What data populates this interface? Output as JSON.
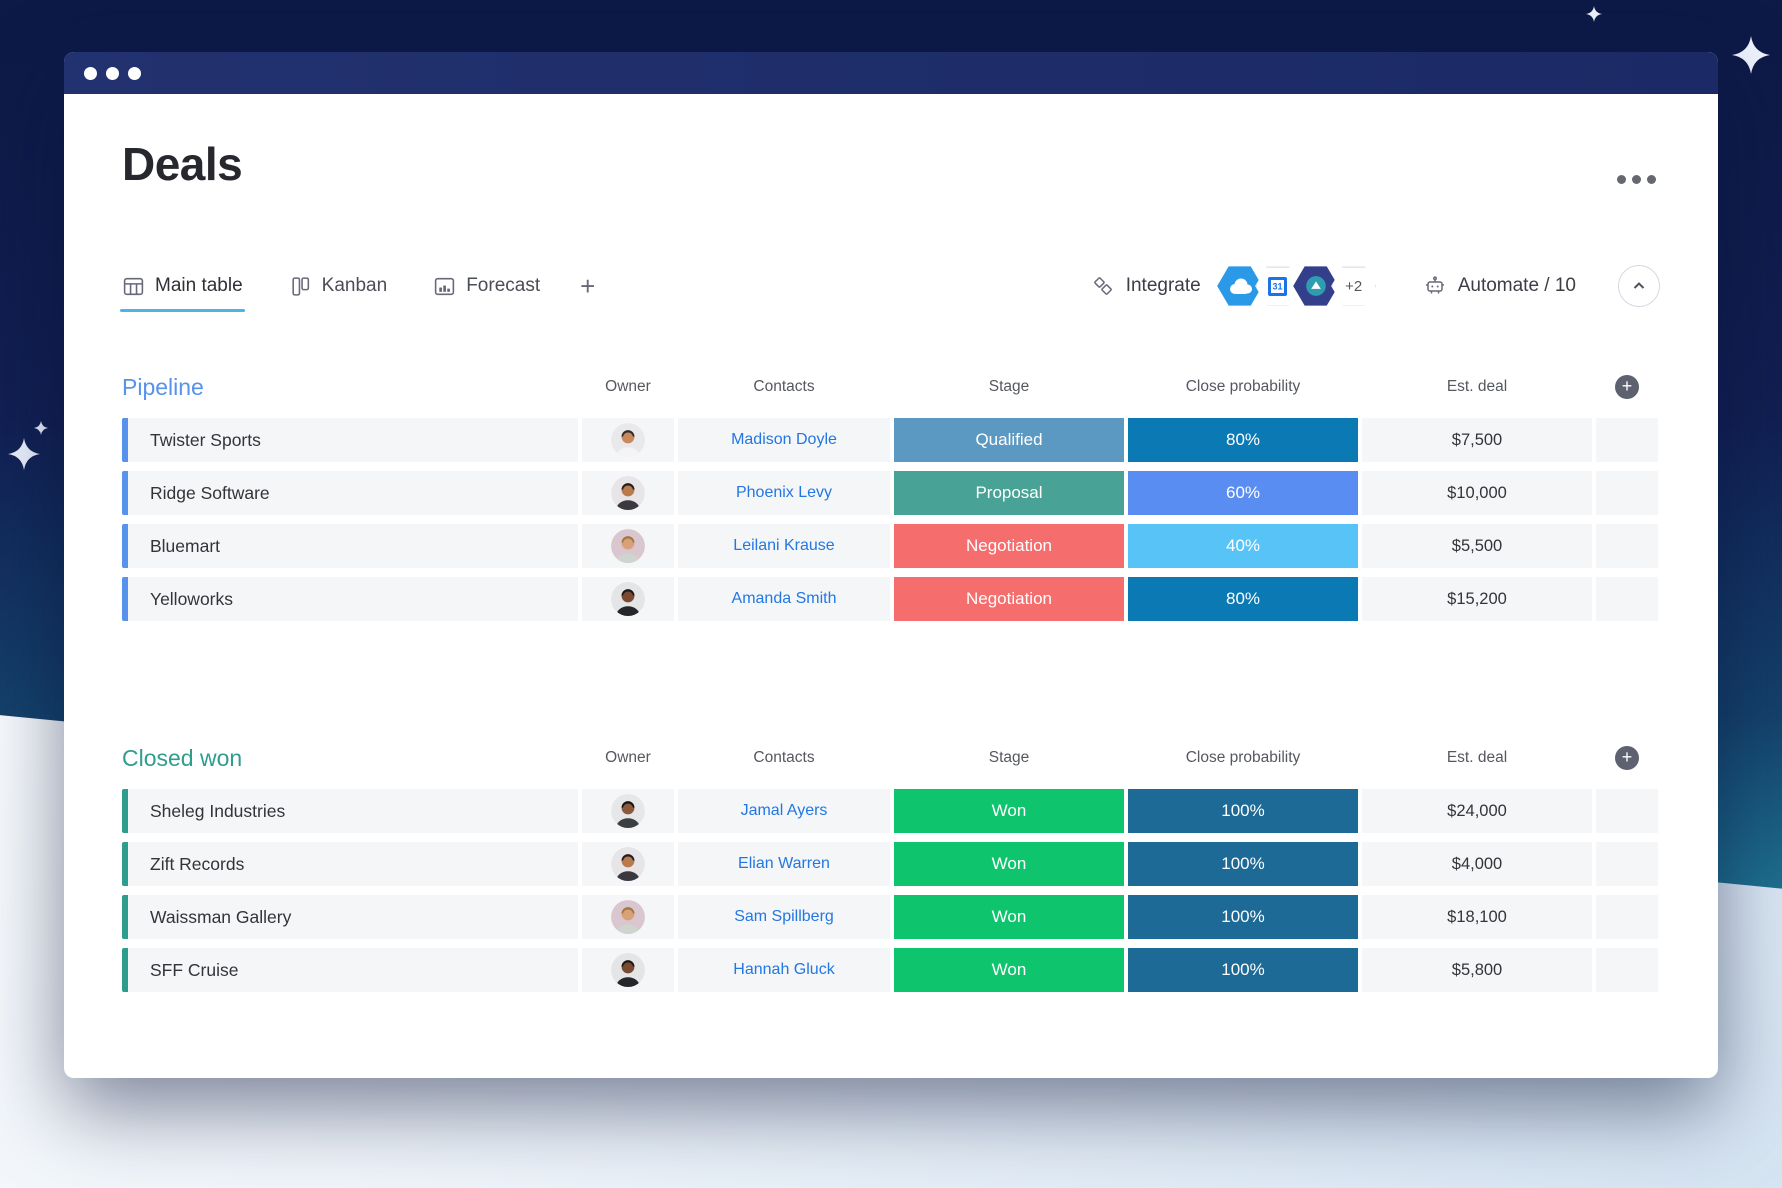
{
  "window": {
    "title": "Deals"
  },
  "tabs": [
    {
      "label": "Main table",
      "icon": "table-icon",
      "active": true
    },
    {
      "label": "Kanban",
      "icon": "kanban-icon",
      "active": false
    },
    {
      "label": "Forecast",
      "icon": "forecast-icon",
      "active": false
    }
  ],
  "toolbar": {
    "integrate_label": "Integrate",
    "automate_label": "Automate / 10",
    "badges": [
      {
        "name": "cloud-app-badge",
        "color": "#2a9ae8"
      },
      {
        "name": "calendar-app-badge",
        "color": "#ffffff"
      },
      {
        "name": "hex-app-badge",
        "color": "#333f8a"
      },
      {
        "name": "more-apps-badge",
        "label": "+2"
      }
    ]
  },
  "table": {
    "columns": [
      "Owner",
      "Contacts",
      "Stage",
      "Close probability",
      "Est. deal"
    ]
  },
  "groups": [
    {
      "name": "Pipeline",
      "color": "#5792ec",
      "rows": [
        {
          "name": "Twister Sports",
          "contact": "Madison Doyle",
          "stage": "Qualified",
          "stage_color": "#5b99c2",
          "probability": "80%",
          "probability_color": "#0a79b4",
          "deal": "$7,500",
          "avatar": {
            "bg": "#e9e9eb",
            "skin": "#c9895c",
            "hair": "#332d2a",
            "shirt": "#f4f4f6"
          }
        },
        {
          "name": "Ridge Software",
          "contact": "Phoenix Levy",
          "stage": "Proposal",
          "stage_color": "#48a295",
          "probability": "60%",
          "probability_color": "#5a8df2",
          "deal": "$10,000",
          "avatar": {
            "bg": "#e7e5e8",
            "skin": "#b97a4e",
            "hair": "#241f1e",
            "shirt": "#3c3840"
          }
        },
        {
          "name": "Bluemart",
          "contact": "Leilani Krause",
          "stage": "Negotiation",
          "stage_color": "#f66d6d",
          "probability": "40%",
          "probability_color": "#58c3f7",
          "deal": "$5,500",
          "avatar": {
            "bg": "#d9c6ce",
            "skin": "#d9a177",
            "hair": "#a07742",
            "shirt": "#cfd4cf"
          }
        },
        {
          "name": "Yelloworks",
          "contact": "Amanda Smith",
          "stage": "Negotiation",
          "stage_color": "#f66d6d",
          "probability": "80%",
          "probability_color": "#0a79b4",
          "deal": "$15,200",
          "avatar": {
            "bg": "#e4e5e7",
            "skin": "#7a4b32",
            "hair": "#1d1a18",
            "shirt": "#26262a"
          }
        }
      ]
    },
    {
      "name": "Closed won",
      "color": "#2f9d8e",
      "rows": [
        {
          "name": "Sheleg Industries",
          "contact": "Jamal Ayers",
          "stage": "Won",
          "stage_color": "#0ec46c",
          "probability": "100%",
          "probability_color": "#1e6a96",
          "deal": "$24,000",
          "avatar": {
            "bg": "#e6e7e9",
            "skin": "#8a5a3b",
            "hair": "#171412",
            "shirt": "#3a3f44"
          }
        },
        {
          "name": "Zift Records",
          "contact": "Elian Warren",
          "stage": "Won",
          "stage_color": "#0ec46c",
          "probability": "100%",
          "probability_color": "#1e6a96",
          "deal": "$4,000",
          "avatar": {
            "bg": "#e7e5e8",
            "skin": "#b97a4e",
            "hair": "#241f1e",
            "shirt": "#3c3840"
          }
        },
        {
          "name": "Waissman Gallery",
          "contact": "Sam Spillberg",
          "stage": "Won",
          "stage_color": "#0ec46c",
          "probability": "100%",
          "probability_color": "#1e6a96",
          "deal": "$18,100",
          "avatar": {
            "bg": "#d9c6ce",
            "skin": "#d9a177",
            "hair": "#a07742",
            "shirt": "#cfd4cf"
          }
        },
        {
          "name": "SFF Cruise",
          "contact": "Hannah Gluck",
          "stage": "Won",
          "stage_color": "#0ec46c",
          "probability": "100%",
          "probability_color": "#1e6a96",
          "deal": "$5,800",
          "avatar": {
            "bg": "#e4e5e7",
            "skin": "#7a4b32",
            "hair": "#1d1a18",
            "shirt": "#26262a"
          }
        }
      ]
    }
  ],
  "colors": {
    "link": "#2277e3",
    "row_bg": "#f5f6f8",
    "active_tab_underline": "#4fb2e5"
  }
}
